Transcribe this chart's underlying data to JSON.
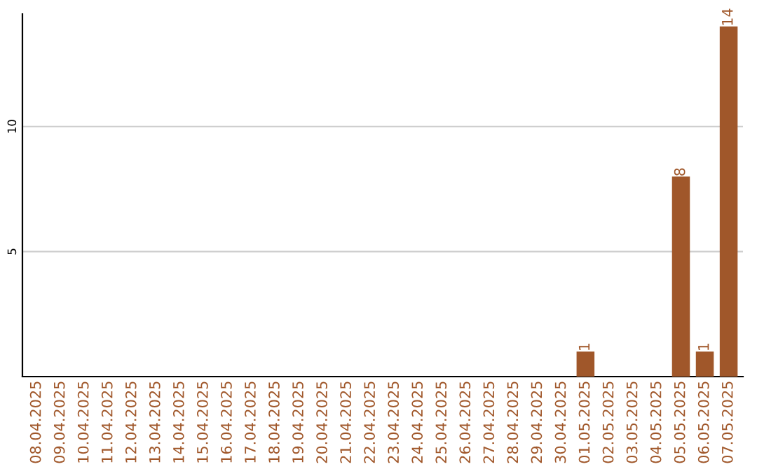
{
  "chart_data": {
    "type": "bar",
    "categories": [
      "08.04.2025",
      "09.04.2025",
      "10.04.2025",
      "11.04.2025",
      "12.04.2025",
      "13.04.2025",
      "14.04.2025",
      "15.04.2025",
      "16.04.2025",
      "17.04.2025",
      "18.04.2025",
      "19.04.2025",
      "20.04.2025",
      "21.04.2025",
      "22.04.2025",
      "23.04.2025",
      "24.04.2025",
      "25.04.2025",
      "26.04.2025",
      "27.04.2025",
      "28.04.2025",
      "29.04.2025",
      "30.04.2025",
      "01.05.2025",
      "02.05.2025",
      "03.05.2025",
      "04.05.2025",
      "05.05.2025",
      "06.05.2025",
      "07.05.2025"
    ],
    "values": [
      0,
      0,
      0,
      0,
      0,
      0,
      0,
      0,
      0,
      0,
      0,
      0,
      0,
      0,
      0,
      0,
      0,
      0,
      0,
      0,
      0,
      0,
      0,
      1,
      0,
      0,
      0,
      8,
      1,
      14
    ],
    "value_labels": [
      null,
      null,
      null,
      null,
      null,
      null,
      null,
      null,
      null,
      null,
      null,
      null,
      null,
      null,
      null,
      null,
      null,
      null,
      null,
      null,
      null,
      null,
      null,
      "1",
      null,
      null,
      null,
      "8",
      "1",
      "14"
    ],
    "color": "#a0572a",
    "ylim": [
      0,
      14.5
    ],
    "yticks": [
      5,
      10
    ],
    "grid": "y"
  }
}
